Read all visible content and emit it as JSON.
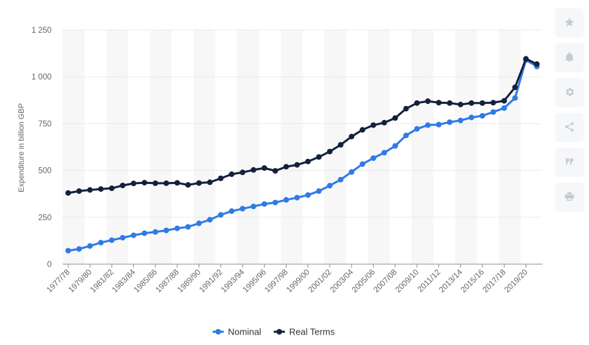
{
  "chart_data": {
    "type": "line",
    "ylabel": "Expenditure in billion GBP",
    "xlabel": "",
    "ylim": [
      0,
      1250
    ],
    "yticks": [
      0,
      250,
      500,
      750,
      1000,
      1250
    ],
    "ytick_labels": [
      "0",
      "250",
      "500",
      "750",
      "1 000",
      "1 250"
    ],
    "grid": true,
    "legend_position": "bottom-center",
    "categories": [
      "1977/78",
      "1978/79",
      "1979/80",
      "1980/81",
      "1981/82",
      "1982/83",
      "1983/84",
      "1984/85",
      "1985/86",
      "1986/87",
      "1987/88",
      "1988/89",
      "1989/90",
      "1990/91",
      "1991/92",
      "1992/93",
      "1993/94",
      "1994/95",
      "1995/96",
      "1996/97",
      "1997/98",
      "1998/99",
      "1999/00",
      "2000/01",
      "2001/02",
      "2002/03",
      "2003/04",
      "2004/05",
      "2005/06",
      "2006/07",
      "2007/08",
      "2008/09",
      "2009/10",
      "2010/11",
      "2011/12",
      "2012/13",
      "2013/14",
      "2014/15",
      "2015/16",
      "2016/17",
      "2017/18",
      "2018/19",
      "2019/20",
      "2020/21"
    ],
    "xtick_labels": [
      "1977/78",
      "1979/80",
      "1981/82",
      "1983/84",
      "1985/86",
      "1987/88",
      "1989/90",
      "1991/92",
      "1993/94",
      "1995/96",
      "1997/98",
      "1999/00",
      "2001/02",
      "2003/04",
      "2005/06",
      "2007/08",
      "2009/10",
      "2011/12",
      "2013/14",
      "2015/16",
      "2017/18",
      "2019/20"
    ],
    "series": [
      {
        "name": "Nominal",
        "color": "#2f7be5",
        "values": [
          72,
          81,
          97,
          115,
          128,
          141,
          154,
          165,
          172,
          180,
          191,
          199,
          218,
          237,
          263,
          283,
          296,
          308,
          321,
          329,
          343,
          355,
          369,
          390,
          419,
          451,
          492,
          534,
          566,
          595,
          631,
          687,
          722,
          742,
          745,
          758,
          767,
          783,
          792,
          812,
          833,
          887,
          1090,
          1055
        ]
      },
      {
        "name": "Real Terms",
        "color": "#14213d",
        "values": [
          380,
          390,
          396,
          401,
          405,
          420,
          431,
          435,
          432,
          432,
          434,
          423,
          433,
          437,
          458,
          480,
          490,
          503,
          513,
          498,
          520,
          530,
          548,
          572,
          601,
          637,
          681,
          717,
          742,
          755,
          780,
          830,
          860,
          870,
          862,
          860,
          852,
          860,
          860,
          862,
          872,
          944,
          1096,
          1068
        ]
      }
    ]
  },
  "toolbar": {
    "icons": [
      "star-icon",
      "bell-icon",
      "gear-icon",
      "share-icon",
      "quote-icon",
      "print-icon"
    ]
  }
}
